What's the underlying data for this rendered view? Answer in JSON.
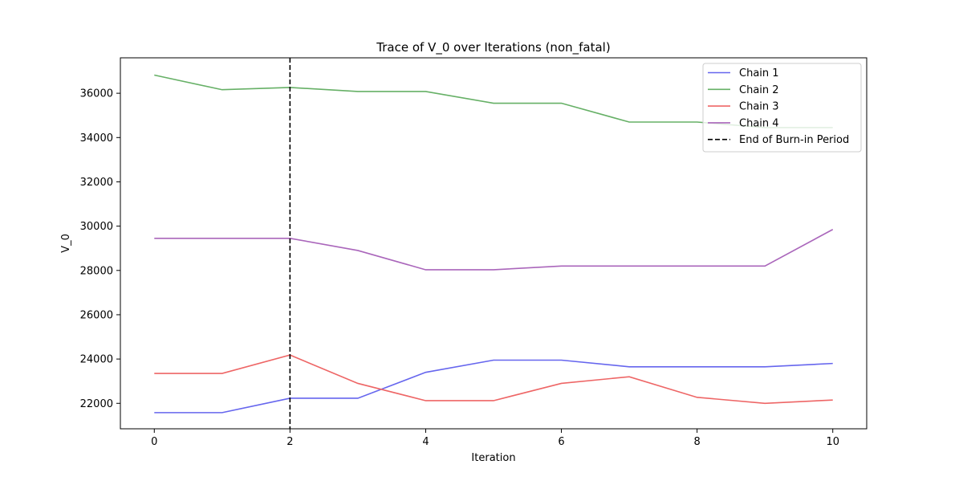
{
  "chart_data": {
    "type": "line",
    "title": "Trace of V_0 over Iterations (non_fatal)",
    "xlabel": "Iteration",
    "ylabel": "V_0",
    "xlim": [
      -0.5,
      10.5
    ],
    "ylim": [
      20850,
      37600
    ],
    "x_ticks": [
      0,
      2,
      4,
      6,
      8,
      10
    ],
    "y_ticks": [
      22000,
      24000,
      26000,
      28000,
      30000,
      32000,
      34000,
      36000
    ],
    "x": [
      0,
      1,
      2,
      3,
      4,
      5,
      6,
      7,
      8,
      9,
      10
    ],
    "series": [
      {
        "name": "Chain 1",
        "color": "#6666ee",
        "values": [
          21580,
          21580,
          22230,
          22230,
          23400,
          23950,
          23950,
          23650,
          23650,
          23650,
          23800
        ]
      },
      {
        "name": "Chain 2",
        "color": "#66b066",
        "values": [
          36820,
          36160,
          36260,
          36080,
          36080,
          35550,
          35550,
          34700,
          34700,
          34450,
          34450
        ]
      },
      {
        "name": "Chain 3",
        "color": "#ee6666",
        "values": [
          23350,
          23350,
          24180,
          22900,
          22120,
          22120,
          22900,
          23200,
          22270,
          22000,
          22150
        ]
      },
      {
        "name": "Chain 4",
        "color": "#aa66bb",
        "values": [
          29450,
          29450,
          29450,
          28900,
          28030,
          28030,
          28200,
          28200,
          28200,
          28200,
          29850
        ]
      }
    ],
    "burn_in": {
      "x": 2,
      "label": "End of Burn-in Period",
      "color": "#000000"
    },
    "legend": "top-right",
    "grid": false
  }
}
